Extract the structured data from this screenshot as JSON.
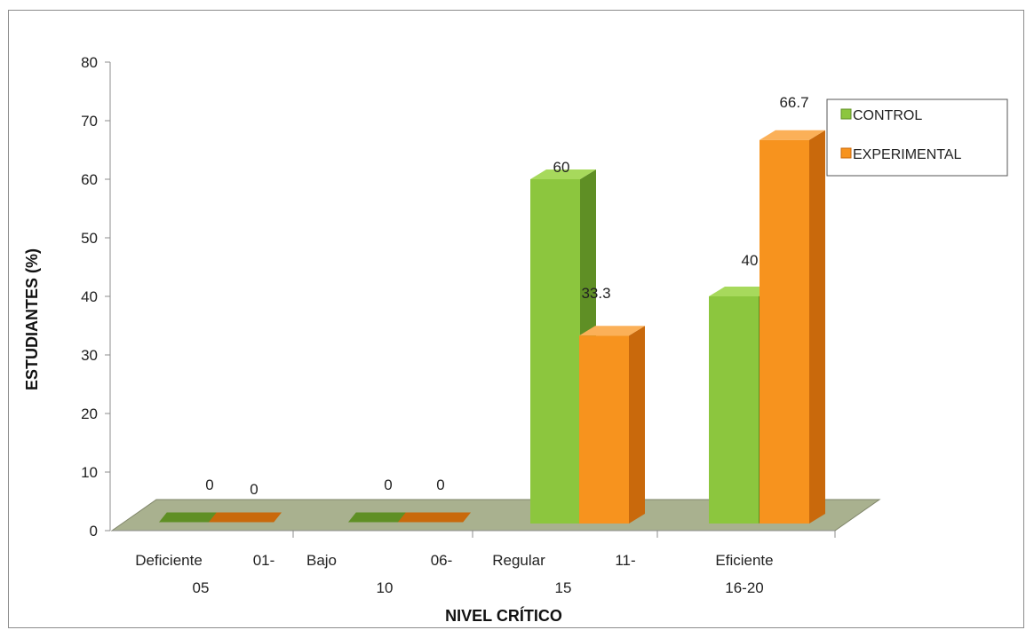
{
  "chart_data": {
    "type": "bar",
    "title": "",
    "xlabel": "NIVEL CRÍTICO",
    "ylabel": "ESTUDIANTES  (%)",
    "ylim": [
      0,
      80
    ],
    "yticks": [
      0,
      10,
      20,
      30,
      40,
      50,
      60,
      70,
      80
    ],
    "categories": [
      [
        "Deficiente",
        "01-",
        "05"
      ],
      [
        "Bajo",
        "06-",
        "10"
      ],
      [
        "Regular",
        "11-",
        "15"
      ],
      [
        "Eficiente",
        "",
        "16-20"
      ]
    ],
    "series": [
      {
        "name": "CONTROL",
        "values": [
          0,
          0,
          60,
          40
        ],
        "labels": [
          "0",
          "0",
          "60",
          "40"
        ],
        "color": "#8cc63e",
        "side": "#5f8f25",
        "top": "#a7d95c"
      },
      {
        "name": "EXPERIMENTAL",
        "values": [
          0,
          0,
          33.3,
          66.7
        ],
        "labels": [
          "0",
          "0",
          "33.3",
          "66.7"
        ],
        "color": "#f7931e",
        "side": "#c9690c",
        "top": "#fbb058"
      }
    ],
    "legend_position": "top-right",
    "grid": false,
    "floor_color": "#a9b18f"
  }
}
